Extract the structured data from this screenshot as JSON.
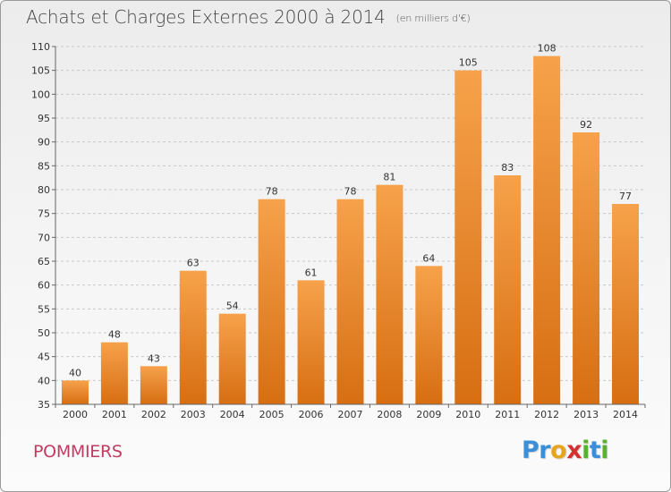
{
  "title": "Achats et Charges Externes 2000 à 2014",
  "subtitle": "(en milliers d'€)",
  "commune": "POMMIERS",
  "logo": {
    "text": "Proxiti",
    "letters": [
      {
        "char": "P",
        "color": "#3a8fd8"
      },
      {
        "char": "r",
        "color": "#3a8fd8"
      },
      {
        "char": "o",
        "color": "#e8a51c"
      },
      {
        "char": "x",
        "color": "#d4302f"
      },
      {
        "char": "i",
        "color": "#5ab033"
      },
      {
        "char": "t",
        "color": "#3a8fd8"
      },
      {
        "char": "i",
        "color": "#5ab033"
      }
    ]
  },
  "colors": {
    "bar_top": "#f6a24b",
    "bar_bottom": "#d76e12",
    "grid": "#c8c8c8",
    "axis": "#666666"
  },
  "chart_data": {
    "type": "bar",
    "title": "Achats et Charges Externes 2000 à 2014",
    "subtitle": "(en milliers d'€)",
    "xlabel": "",
    "ylabel": "",
    "categories": [
      "2000",
      "2001",
      "2002",
      "2003",
      "2004",
      "2005",
      "2006",
      "2007",
      "2008",
      "2009",
      "2010",
      "2011",
      "2012",
      "2013",
      "2014"
    ],
    "values": [
      40,
      48,
      43,
      63,
      54,
      78,
      61,
      78,
      81,
      64,
      105,
      83,
      108,
      92,
      77
    ],
    "ylim": [
      35,
      110
    ],
    "yticks": [
      35,
      40,
      45,
      50,
      55,
      60,
      65,
      70,
      75,
      80,
      85,
      90,
      95,
      100,
      105,
      110
    ],
    "grid": "horizontal dashed",
    "legend": "none"
  }
}
